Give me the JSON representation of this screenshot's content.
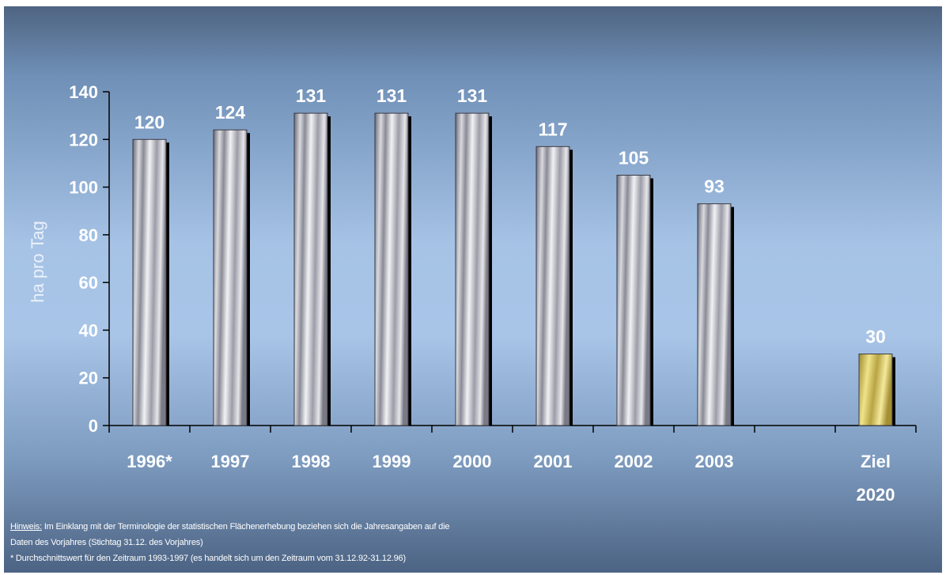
{
  "chart_data": {
    "type": "bar",
    "categories": [
      "1996*",
      "1997",
      "1998",
      "1999",
      "2000",
      "2001",
      "2002",
      "2003",
      "",
      "Ziel 2020"
    ],
    "values": [
      120,
      124,
      131,
      131,
      131,
      117,
      105,
      93,
      null,
      30
    ],
    "value_labels": [
      "120",
      "124",
      "131",
      "131",
      "131",
      "117",
      "105",
      "93",
      "",
      "30"
    ],
    "ylabel": "ha pro Tag",
    "ylim": [
      0,
      140
    ],
    "yticks": [
      0,
      20,
      40,
      60,
      80,
      100,
      120,
      140
    ],
    "grid": false,
    "colors": {
      "historic_bars": "#b8b8c0",
      "target_bar": "#d4c35e",
      "text": "#ffffff"
    }
  },
  "notes": {
    "hint_label": "Hinweis:",
    "hint_text": " Im Einklang mit der Terminologie der statistischen Flächenerhebung beziehen sich die Jahresangaben auf die",
    "hint_text_line2": "Daten des Vorjahres (Stichtag 31.12. des Vorjahres)",
    "footnote": "* Durchschnittswert für den Zeitraum 1993-1997 (es handelt sich um den Zeitraum vom 31.12.92-31.12.96)"
  }
}
